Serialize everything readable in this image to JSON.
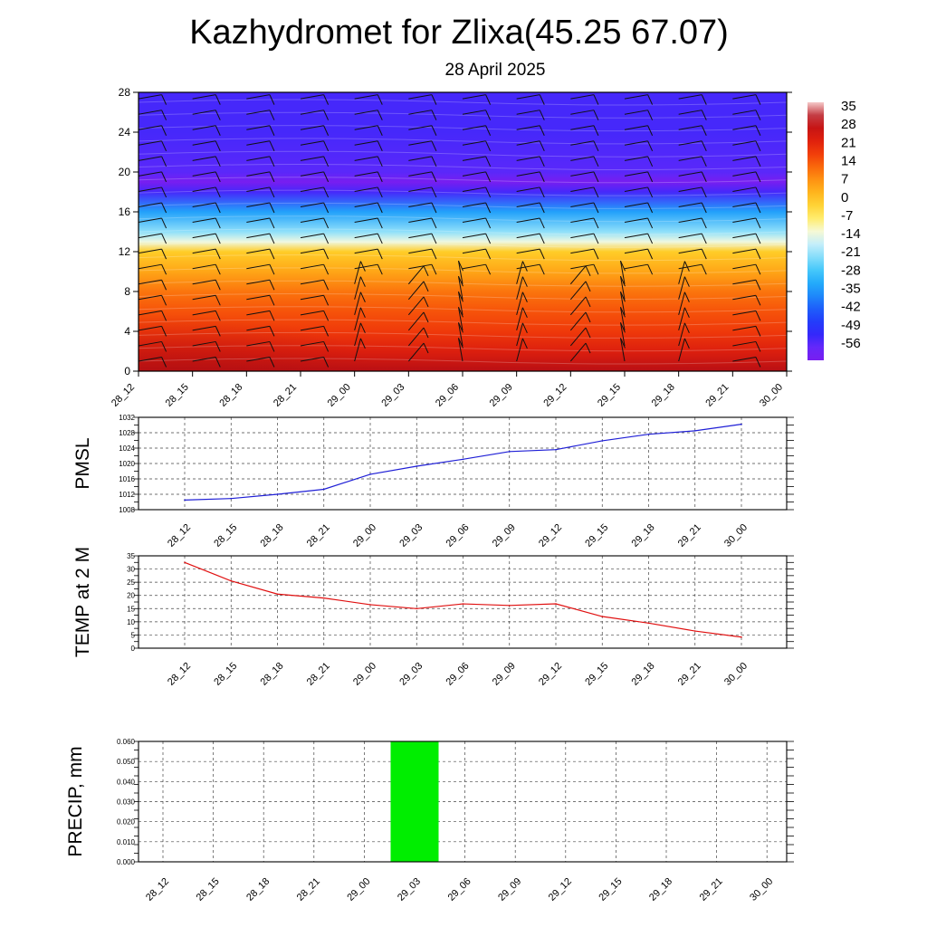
{
  "header": {
    "title": "Kazhydromet for Zlixa(45.25 67.07)",
    "subtitle": "28 April 2025"
  },
  "colors": {
    "pmsl_line": "#1f1fd6",
    "temp_line": "#e01010",
    "precip_bar": "#00ee00"
  },
  "chart_data": [
    {
      "id": "cross_section",
      "type": "heatmap",
      "title": "",
      "x_tick_labels": [
        "28_12",
        "28_15",
        "28_18",
        "28_21",
        "29_00",
        "29_03",
        "29_06",
        "29_09",
        "29_12",
        "29_15",
        "29_18",
        "29_21",
        "30_00"
      ],
      "y_ticks": [
        0,
        4,
        8,
        12,
        16,
        20,
        24,
        28
      ],
      "ylim": [
        0,
        28
      ],
      "colorbar_labels": [
        "35",
        "28",
        "21",
        "14",
        "7",
        "0",
        "-7",
        "-14",
        "-21",
        "-28",
        "-35",
        "-42",
        "-49",
        "-56"
      ],
      "colorbar_range": [
        -60,
        38
      ],
      "temperature_by_level": [
        {
          "level": 0,
          "value": 30
        },
        {
          "level": 2,
          "value": 24
        },
        {
          "level": 4,
          "value": 19
        },
        {
          "level": 6,
          "value": 16
        },
        {
          "level": 8,
          "value": 12
        },
        {
          "level": 10,
          "value": 6
        },
        {
          "level": 12,
          "value": 0
        },
        {
          "level": 13,
          "value": -12
        },
        {
          "level": 14,
          "value": -20
        },
        {
          "level": 16,
          "value": -32
        },
        {
          "level": 18,
          "value": -52
        },
        {
          "level": 19,
          "value": -60
        },
        {
          "level": 20,
          "value": -54
        },
        {
          "level": 24,
          "value": -52
        },
        {
          "level": 28,
          "value": -52
        }
      ],
      "wind_barbs": "wind barbs at each time step and level"
    },
    {
      "id": "pmsl",
      "type": "line",
      "ylabel": "PMSL",
      "x": [
        "28_12",
        "28_15",
        "28_18",
        "28_21",
        "29_00",
        "29_03",
        "29_06",
        "29_09",
        "29_12",
        "29_15",
        "29_18",
        "29_21",
        "30_00"
      ],
      "values": [
        1010.5,
        1010.9,
        1012.0,
        1013.3,
        1017.2,
        1019.3,
        1021.1,
        1023.1,
        1023.6,
        1025.9,
        1027.6,
        1028.5,
        1030.2
      ],
      "y_ticks": [
        "1008",
        "1012",
        "1016",
        "1020",
        "1024",
        "1028",
        "1032"
      ],
      "ylim": [
        1008,
        1032
      ],
      "grid": true
    },
    {
      "id": "temp2m",
      "type": "line",
      "ylabel": "TEMP at 2 M",
      "x": [
        "28_12",
        "28_15",
        "28_18",
        "28_21",
        "29_00",
        "29_03",
        "29_06",
        "29_09",
        "29_12",
        "29_15",
        "29_18",
        "29_21",
        "30_00"
      ],
      "values": [
        32.5,
        25.5,
        20.5,
        19.0,
        16.5,
        15.0,
        16.8,
        16.2,
        16.8,
        12.0,
        9.5,
        6.5,
        4.2
      ],
      "y_ticks": [
        "0",
        "5",
        "10",
        "15",
        "20",
        "25",
        "30",
        "35"
      ],
      "ylim": [
        0,
        35
      ],
      "grid": true
    },
    {
      "id": "precip",
      "type": "bar",
      "ylabel": "PRECIP, mm",
      "categories": [
        "28_12",
        "28_15",
        "28_18",
        "28_21",
        "29_00",
        "29_03",
        "29_06",
        "29_09",
        "29_12",
        "29_15",
        "29_18",
        "29_21",
        "30_00"
      ],
      "values": [
        0,
        0,
        0,
        0,
        0,
        0.06,
        0,
        0,
        0,
        0,
        0,
        0,
        0
      ],
      "y_ticks": [
        "0.000",
        "0.010",
        "0.020",
        "0.030",
        "0.040",
        "0.050",
        "0.060"
      ],
      "ylim": [
        0,
        0.06
      ],
      "grid": true
    }
  ]
}
